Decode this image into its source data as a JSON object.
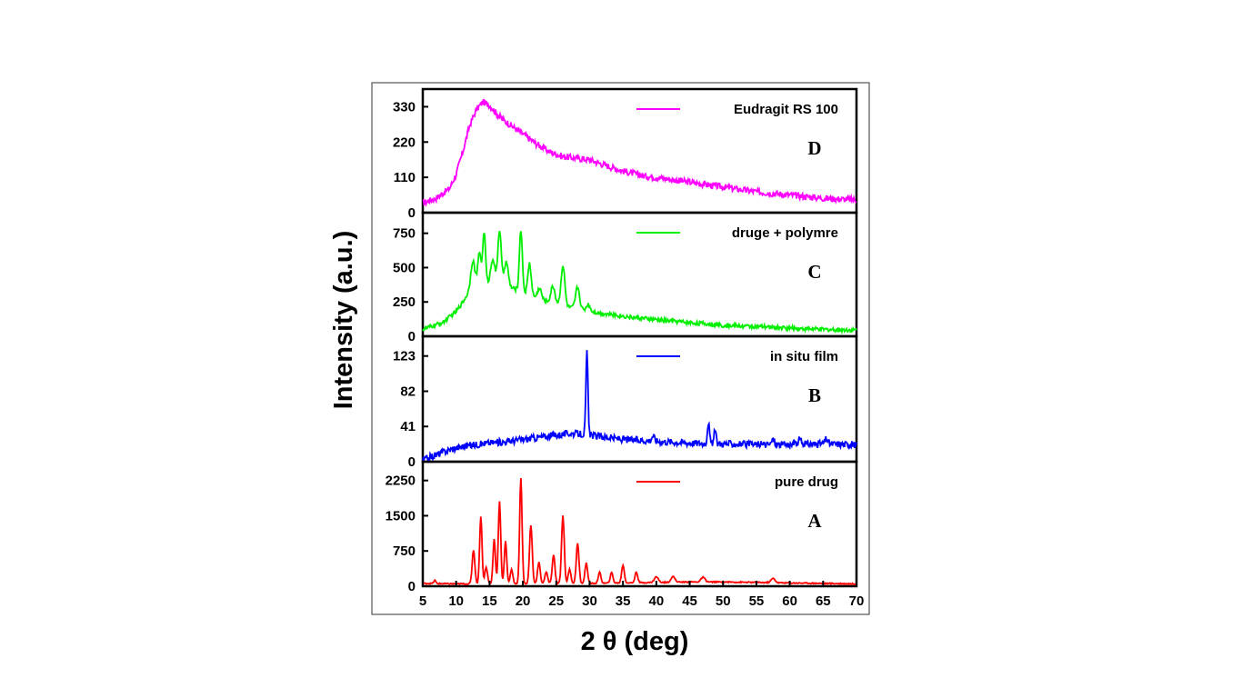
{
  "chart_data": {
    "type": "line",
    "xlabel": "2 θ (deg)",
    "ylabel": "Intensity (a.u.)",
    "xlim": [
      5,
      70
    ],
    "xticks": [
      "5",
      "10",
      "15",
      "20",
      "25",
      "30",
      "35",
      "40",
      "45",
      "50",
      "55",
      "60",
      "65",
      "70"
    ],
    "panels": [
      {
        "letter": "D",
        "series_name": "Eudragit RS 100",
        "color": "#ff00ff",
        "ylim": [
          0,
          385
        ],
        "yticks": [
          "0",
          "110",
          "220",
          "330"
        ],
        "x": [
          5,
          7,
          9,
          10,
          11,
          12,
          13,
          14,
          15,
          16,
          17,
          18,
          19,
          20,
          22,
          24,
          26,
          28,
          30,
          32,
          35,
          38,
          40,
          45,
          50,
          55,
          60,
          65,
          70
        ],
        "y": [
          30,
          45,
          75,
          120,
          190,
          270,
          320,
          345,
          335,
          310,
          290,
          275,
          260,
          245,
          215,
          190,
          175,
          170,
          165,
          150,
          130,
          115,
          110,
          95,
          80,
          65,
          55,
          45,
          40
        ],
        "noise": 10
      },
      {
        "letter": "C",
        "series_name": "druge + polymre",
        "color": "#00ee00",
        "ylim": [
          0,
          900
        ],
        "yticks": [
          "0",
          "250",
          "500",
          "750"
        ],
        "x": [
          5,
          8,
          10,
          11,
          12,
          13,
          14,
          15,
          17,
          19,
          21,
          23,
          25,
          27,
          30,
          33,
          36,
          40,
          45,
          50,
          55,
          60,
          65,
          70
        ],
        "y": [
          50,
          100,
          180,
          250,
          330,
          370,
          390,
          390,
          370,
          340,
          300,
          260,
          240,
          210,
          180,
          160,
          140,
          120,
          100,
          80,
          70,
          60,
          50,
          45
        ],
        "noise": 15,
        "peaks": [
          [
            12.5,
            200,
            0.3
          ],
          [
            13.5,
            230,
            0.25
          ],
          [
            14.2,
            370,
            0.2
          ],
          [
            15.5,
            180,
            0.3
          ],
          [
            16.5,
            400,
            0.25
          ],
          [
            17.5,
            180,
            0.3
          ],
          [
            19.7,
            450,
            0.22
          ],
          [
            21.0,
            230,
            0.25
          ],
          [
            22.5,
            80,
            0.3
          ],
          [
            24.5,
            120,
            0.3
          ],
          [
            26.0,
            290,
            0.28
          ],
          [
            28.2,
            160,
            0.3
          ],
          [
            29.8,
            50,
            0.3
          ]
        ]
      },
      {
        "letter": "B",
        "series_name": "in situ film",
        "color": "#0000ff",
        "ylim": [
          0,
          146
        ],
        "yticks": [
          "0",
          "41",
          "82",
          "123"
        ],
        "x": [
          5,
          7,
          9,
          11,
          13,
          15,
          17,
          19,
          21,
          23,
          25,
          27,
          29,
          31,
          33,
          35,
          40,
          45,
          50,
          55,
          60,
          65,
          70
        ],
        "y": [
          2,
          8,
          14,
          18,
          20,
          22,
          23,
          25,
          27,
          29,
          31,
          33,
          32,
          30,
          28,
          26,
          24,
          22,
          21,
          20,
          20,
          21,
          20
        ],
        "noise": 4,
        "peaks": [
          [
            29.6,
            96,
            0.15
          ],
          [
            47.8,
            25,
            0.15
          ],
          [
            48.8,
            15,
            0.15
          ],
          [
            39.5,
            6,
            0.2
          ],
          [
            57.5,
            6,
            0.2
          ],
          [
            61.5,
            6,
            0.2
          ],
          [
            65.5,
            6,
            0.2
          ]
        ]
      },
      {
        "letter": "A",
        "series_name": "pure drug",
        "color": "#ff0000",
        "ylim": [
          0,
          2650
        ],
        "yticks": [
          "0",
          "750",
          "1500",
          "2250"
        ],
        "x": [
          5,
          10,
          15,
          20,
          25,
          30,
          35,
          40,
          45,
          50,
          55,
          60,
          65,
          70
        ],
        "y": [
          60,
          50,
          50,
          50,
          60,
          60,
          70,
          80,
          90,
          90,
          80,
          70,
          60,
          50
        ],
        "noise": 12,
        "peaks": [
          [
            6.8,
            70,
            0.15
          ],
          [
            12.6,
            720,
            0.2
          ],
          [
            13.7,
            1430,
            0.18
          ],
          [
            14.5,
            350,
            0.2
          ],
          [
            15.7,
            950,
            0.18
          ],
          [
            16.5,
            1750,
            0.18
          ],
          [
            17.4,
            900,
            0.18
          ],
          [
            18.3,
            300,
            0.2
          ],
          [
            19.7,
            2250,
            0.18
          ],
          [
            21.2,
            1250,
            0.2
          ],
          [
            22.4,
            450,
            0.2
          ],
          [
            23.5,
            250,
            0.2
          ],
          [
            24.6,
            600,
            0.2
          ],
          [
            26.0,
            1450,
            0.2
          ],
          [
            27.0,
            300,
            0.2
          ],
          [
            28.2,
            850,
            0.2
          ],
          [
            29.5,
            430,
            0.2
          ],
          [
            31.5,
            230,
            0.2
          ],
          [
            33.3,
            220,
            0.2
          ],
          [
            35.0,
            380,
            0.2
          ],
          [
            37.0,
            230,
            0.2
          ],
          [
            40.0,
            120,
            0.3
          ],
          [
            42.5,
            120,
            0.3
          ],
          [
            47.0,
            100,
            0.3
          ],
          [
            57.5,
            90,
            0.3
          ]
        ]
      }
    ]
  }
}
